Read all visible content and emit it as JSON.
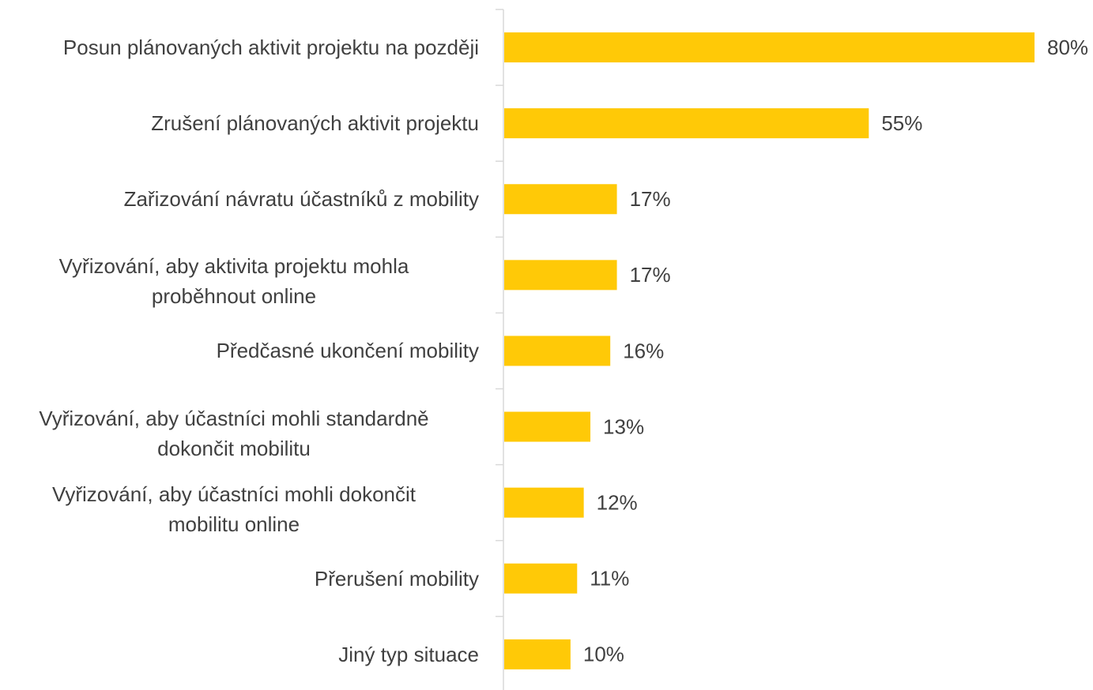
{
  "chart_data": {
    "type": "barh",
    "categories": [
      "Posun plánovaných aktivit projektu na později",
      "Zrušení plánovaných aktivit projektu",
      "Zařizování návratu účastníků z mobility",
      "Vyřizování, aby aktivita projektu mohla\nproběhnout online",
      "Předčasné ukončení mobility",
      "Vyřizování, aby účastníci mohli standardně\ndokončit mobilitu",
      "Vyřizování, aby účastníci mohli dokončit\nmobilitu online",
      "Přerušení mobility",
      "Jiný typ situace"
    ],
    "values": [
      80,
      55,
      17,
      17,
      16,
      13,
      12,
      11,
      10
    ],
    "value_labels": [
      "80%",
      "55%",
      "17%",
      "17%",
      "16%",
      "13%",
      "12%",
      "11%",
      "10%"
    ],
    "color": "#ffc907"
  }
}
